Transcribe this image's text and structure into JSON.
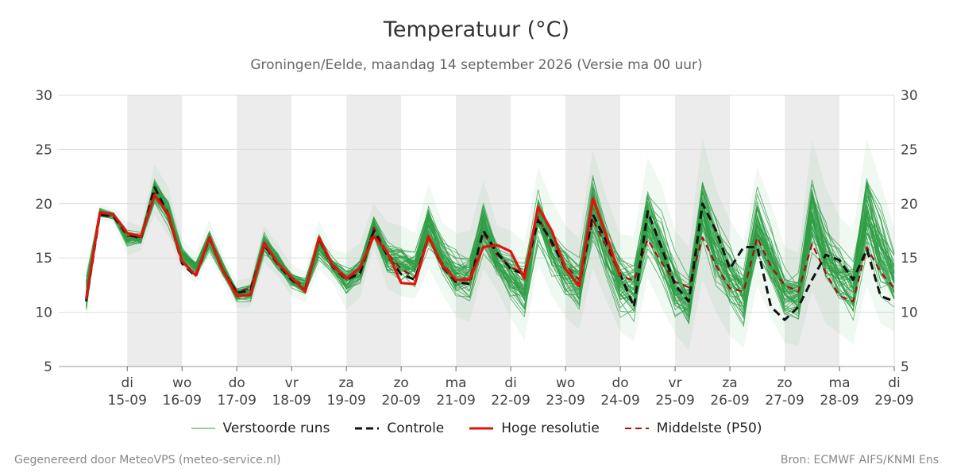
{
  "header": {
    "title": "Temperatuur (°C)",
    "subtitle": "Groningen/Eelde, maandag 14 september 2026 (Versie ma 00 uur)"
  },
  "footer": {
    "left": "Gegenereerd door MeteoVPS (meteo-service.nl)",
    "right": "Bron: ECMWF AIFS/KNMI Ens"
  },
  "legend": [
    {
      "label": "Verstoorde runs",
      "color": "#2e9e44",
      "style": "thin-solid"
    },
    {
      "label": "Controle",
      "color": "#111111",
      "style": "dashed"
    },
    {
      "label": "Hoge resolutie",
      "color": "#e3120b",
      "style": "solid"
    },
    {
      "label": "Middelste (P50)",
      "color": "#a50f0f",
      "style": "dashed"
    }
  ],
  "colors": {
    "ensemble": "#2e9e44",
    "control": "#111111",
    "hires": "#e3120b",
    "median": "#a50f0f",
    "weekend_band": "#ececec",
    "grid": "#dddddd"
  },
  "chart_data": {
    "type": "line",
    "x_unit": "days since 14-09-2026 00 UTC",
    "ylim": [
      5,
      30
    ],
    "y_ticks": [
      5,
      10,
      15,
      20,
      25,
      30
    ],
    "grid": "horizontal",
    "legend_position": "bottom",
    "x_ticks": [
      {
        "day": "di",
        "date": "15-09"
      },
      {
        "day": "wo",
        "date": "16-09"
      },
      {
        "day": "do",
        "date": "17-09"
      },
      {
        "day": "vr",
        "date": "18-09"
      },
      {
        "day": "za",
        "date": "19-09"
      },
      {
        "day": "zo",
        "date": "20-09"
      },
      {
        "day": "ma",
        "date": "21-09"
      },
      {
        "day": "di",
        "date": "22-09"
      },
      {
        "day": "wo",
        "date": "23-09"
      },
      {
        "day": "do",
        "date": "24-09"
      },
      {
        "day": "vr",
        "date": "25-09"
      },
      {
        "day": "za",
        "date": "26-09"
      },
      {
        "day": "zo",
        "date": "27-09"
      },
      {
        "day": "ma",
        "date": "28-09"
      },
      {
        "day": "di",
        "date": "29-09"
      }
    ],
    "shaded_days": [
      1,
      3,
      5,
      7,
      9,
      11,
      13
    ],
    "hires": {
      "name": "Hoge resolutie",
      "x": [
        -0.75,
        -0.5,
        -0.25,
        0,
        0.25,
        0.5,
        0.75,
        1,
        1.25,
        1.5,
        1.75,
        2,
        2.25,
        2.5,
        2.75,
        3,
        3.25,
        3.5,
        3.75,
        4,
        4.25,
        4.5,
        4.75,
        5,
        5.25,
        5.5,
        5.75,
        6,
        6.25,
        6.5,
        6.75,
        7,
        7.25,
        7.5,
        7.75,
        8,
        8.25,
        8.5,
        8.75,
        9
      ],
      "values": [
        11.2,
        19.2,
        19.0,
        17.3,
        17.0,
        20.8,
        19.0,
        14.7,
        13.4,
        16.9,
        13.8,
        11.5,
        11.6,
        16.4,
        14.5,
        13.2,
        11.9,
        16.9,
        14.3,
        13.1,
        14.1,
        17.0,
        15.5,
        12.7,
        12.6,
        17.0,
        14.3,
        13.0,
        13.0,
        16.0,
        16.2,
        15.6,
        13.1,
        19.7,
        17.5,
        14.0,
        12.4,
        20.5,
        17.0,
        13.3
      ]
    },
    "control": {
      "name": "Controle",
      "x": [
        -0.75,
        -0.5,
        -0.25,
        0,
        0.25,
        0.5,
        0.75,
        1,
        1.25,
        1.5,
        1.75,
        2,
        2.25,
        2.5,
        2.75,
        3,
        3.25,
        3.5,
        3.75,
        4,
        4.25,
        4.5,
        4.75,
        5,
        5.25,
        5.5,
        5.75,
        6,
        6.25,
        6.5,
        6.75,
        7,
        7.25,
        7.5,
        7.75,
        8,
        8.25,
        8.5,
        8.75,
        9,
        9.25,
        9.5,
        9.75,
        10,
        10.25,
        10.5,
        10.75,
        11,
        11.25,
        11.5,
        11.75,
        12,
        12.25,
        12.5,
        12.75,
        13,
        13.25,
        13.5,
        13.75,
        14
      ],
      "values": [
        11.0,
        19.0,
        18.8,
        17.2,
        16.8,
        21.5,
        19.0,
        14.5,
        13.3,
        16.8,
        13.8,
        11.8,
        12.0,
        16.2,
        14.4,
        13.0,
        12.0,
        16.8,
        14.2,
        13.0,
        13.6,
        17.5,
        15.2,
        13.5,
        13.0,
        17.0,
        14.2,
        12.8,
        12.6,
        17.5,
        15.5,
        14.0,
        13.5,
        18.5,
        16.5,
        14.0,
        12.5,
        19.0,
        16.5,
        13.5,
        10.5,
        19.3,
        16.0,
        12.5,
        11.0,
        20.0,
        17.5,
        14.0,
        16.0,
        16.0,
        10.5,
        9.3,
        10.5,
        13.0,
        15.3,
        14.8,
        13.0,
        15.8,
        11.5,
        11.0
      ]
    },
    "median": {
      "name": "Middelste (P50)",
      "x": [
        -0.75,
        -0.5,
        -0.25,
        0,
        0.25,
        0.5,
        0.75,
        1,
        1.25,
        1.5,
        1.75,
        2,
        2.25,
        2.5,
        2.75,
        3,
        3.25,
        3.5,
        3.75,
        4,
        4.25,
        4.5,
        4.75,
        5,
        5.25,
        5.5,
        5.75,
        6,
        6.25,
        6.5,
        6.75,
        7,
        7.25,
        7.5,
        7.75,
        8,
        8.25,
        8.5,
        8.75,
        9,
        9.25,
        9.5,
        9.75,
        10,
        10.25,
        10.5,
        10.75,
        11,
        11.25,
        11.5,
        11.75,
        12,
        12.25,
        12.5,
        12.75,
        13,
        13.25,
        13.5,
        13.75,
        14
      ],
      "values": [
        11.3,
        19.0,
        18.8,
        17.0,
        16.9,
        21.0,
        18.8,
        14.6,
        13.5,
        16.7,
        13.9,
        11.9,
        12.2,
        16.1,
        14.5,
        13.1,
        12.3,
        16.6,
        14.4,
        13.2,
        13.6,
        17.8,
        15.4,
        14.0,
        13.2,
        16.8,
        14.5,
        13.0,
        13.1,
        17.3,
        15.3,
        14.2,
        13.5,
        18.8,
        16.2,
        14.3,
        13.0,
        18.5,
        16.0,
        13.4,
        12.9,
        16.7,
        14.6,
        12.8,
        12.3,
        16.9,
        14.3,
        12.2,
        11.9,
        16.9,
        14.2,
        12.5,
        11.9,
        16.3,
        13.6,
        11.5,
        11.0,
        16.0,
        13.7,
        12.2
      ]
    },
    "ensemble": {
      "name": "Verstoorde runs",
      "members": 50,
      "x_start": -0.75,
      "x_step": 0.25,
      "envelope_min": [
        9.2,
        18.5,
        18.3,
        15.2,
        15.7,
        19.0,
        17.0,
        13.9,
        12.7,
        15.2,
        12.8,
        10.4,
        10.5,
        14.6,
        13.3,
        11.5,
        10.9,
        13.9,
        12.7,
        10.2,
        11.4,
        16.0,
        12.2,
        11.5,
        11.2,
        14.0,
        11.7,
        9.6,
        9.1,
        14.0,
        12.0,
        9.5,
        7.4,
        14.5,
        11.5,
        9.5,
        8.4,
        14.0,
        11.0,
        8.2,
        7.3,
        13.2,
        10.5,
        8.0,
        6.5,
        13.0,
        10.0,
        7.8,
        6.7,
        12.5,
        9.5,
        7.2,
        6.9,
        12.0,
        9.0,
        8.0,
        7.1,
        12.5,
        9.0,
        8.2
      ],
      "envelope_max": [
        14.0,
        19.9,
        19.6,
        18.4,
        17.9,
        23.6,
        21.5,
        16.7,
        15.5,
        18.5,
        15.2,
        12.9,
        13.2,
        18.0,
        16.2,
        14.4,
        13.8,
        18.5,
        15.8,
        15.4,
        16.4,
        20.0,
        18.3,
        18.0,
        17.3,
        21.8,
        18.3,
        17.3,
        17.5,
        22.2,
        18.0,
        17.5,
        16.5,
        23.4,
        20.3,
        18.0,
        16.8,
        25.0,
        20.5,
        17.2,
        17.0,
        24.3,
        21.7,
        17.5,
        16.0,
        26.0,
        21.3,
        18.5,
        16.5,
        23.4,
        20.0,
        16.0,
        15.5,
        25.9,
        21.5,
        18.8,
        17.5,
        26.0,
        22.0,
        17.8
      ]
    }
  }
}
